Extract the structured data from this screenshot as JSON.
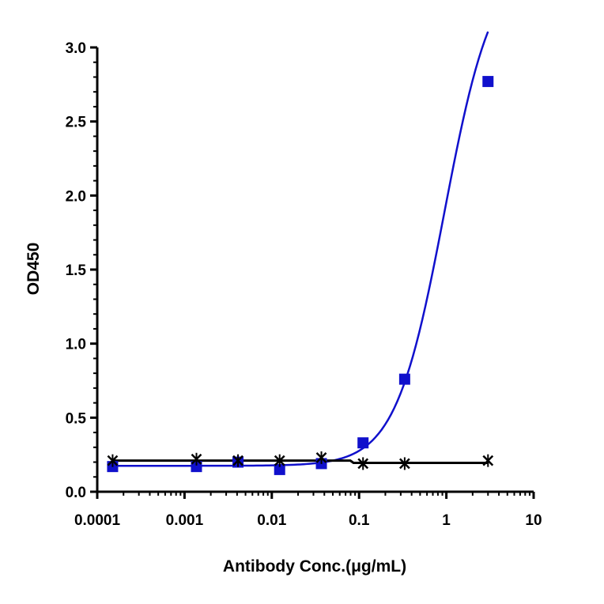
{
  "chart_data": {
    "type": "scatter",
    "title": "",
    "xlabel": "Antibody Conc.(μg/mL)",
    "ylabel": "OD450",
    "x_scale": "log",
    "xlim": [
      0.0001,
      10
    ],
    "ylim": [
      0,
      3.0
    ],
    "x_tick_labels": [
      "0.0001",
      "0.001",
      "0.01",
      "0.1",
      "1",
      "10"
    ],
    "x_tick_values": [
      0.0001,
      0.001,
      0.01,
      0.1,
      1,
      10
    ],
    "y_tick_labels": [
      "0.0",
      "0.5",
      "1.0",
      "1.5",
      "2.0",
      "2.5",
      "3.0"
    ],
    "y_tick_values": [
      0,
      0.5,
      1.0,
      1.5,
      2.0,
      2.5,
      3.0
    ],
    "grid": false,
    "legend": "none",
    "series": [
      {
        "marker": "square",
        "color": "#1010cc",
        "fit": "sigmoid",
        "points": [
          {
            "x": 0.00015,
            "y": 0.17
          },
          {
            "x": 0.00137,
            "y": 0.17
          },
          {
            "x": 0.0041,
            "y": 0.2
          },
          {
            "x": 0.0123,
            "y": 0.15
          },
          {
            "x": 0.037,
            "y": 0.19
          },
          {
            "x": 0.111,
            "y": 0.33
          },
          {
            "x": 0.333,
            "y": 0.76
          },
          {
            "x": 3.0,
            "y": 2.77
          }
        ]
      },
      {
        "marker": "cross",
        "color": "#000000",
        "fit": "flat",
        "points": [
          {
            "x": 0.00015,
            "y": 0.21
          },
          {
            "x": 0.00137,
            "y": 0.22
          },
          {
            "x": 0.0041,
            "y": 0.21
          },
          {
            "x": 0.0123,
            "y": 0.21
          },
          {
            "x": 0.037,
            "y": 0.23
          },
          {
            "x": 0.111,
            "y": 0.19
          },
          {
            "x": 0.333,
            "y": 0.19
          },
          {
            "x": 3.0,
            "y": 0.21
          }
        ]
      }
    ]
  }
}
